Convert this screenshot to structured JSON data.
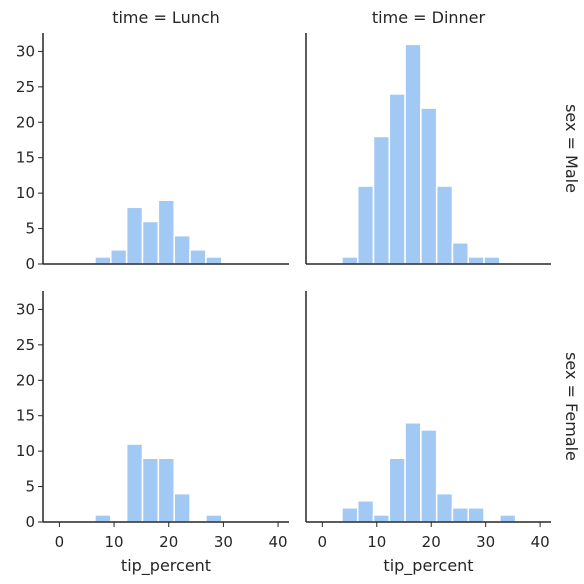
{
  "chart_data": {
    "type": "bar",
    "kind": "faceted-histogram",
    "colors": {
      "bar": "#a1c9f4",
      "axis": "#262626",
      "background": "#ffffff"
    },
    "xlim": [
      -3,
      42
    ],
    "ylim": [
      0,
      32.6
    ],
    "xticks": [
      0,
      10,
      20,
      30,
      40
    ],
    "yticks": [
      0,
      5,
      10,
      15,
      20,
      25,
      30
    ],
    "bin_width": 2.9,
    "bin_start": 3.6,
    "xlabel": "tip_percent",
    "ylabel": "",
    "grid": false,
    "legend": "none",
    "column_titles": [
      "time = Lunch",
      "time = Dinner"
    ],
    "row_titles": [
      "sex = Male",
      "sex = Female"
    ],
    "panels": [
      {
        "title": "time = Lunch",
        "row": "sex = Male",
        "counts": [
          0,
          1,
          2,
          8,
          6,
          9,
          4,
          2,
          1,
          0,
          0
        ]
      },
      {
        "title": "time = Dinner",
        "row": "sex = Male",
        "counts": [
          1,
          11,
          18,
          24,
          31,
          22,
          11,
          3,
          1,
          1,
          0
        ]
      },
      {
        "title": "time = Lunch",
        "row": "sex = Female",
        "counts": [
          0,
          1,
          0,
          11,
          9,
          9,
          4,
          0,
          1,
          0,
          0
        ]
      },
      {
        "title": "time = Dinner",
        "row": "sex = Female",
        "counts": [
          2,
          3,
          1,
          9,
          14,
          13,
          4,
          2,
          2,
          0,
          1
        ]
      }
    ]
  }
}
